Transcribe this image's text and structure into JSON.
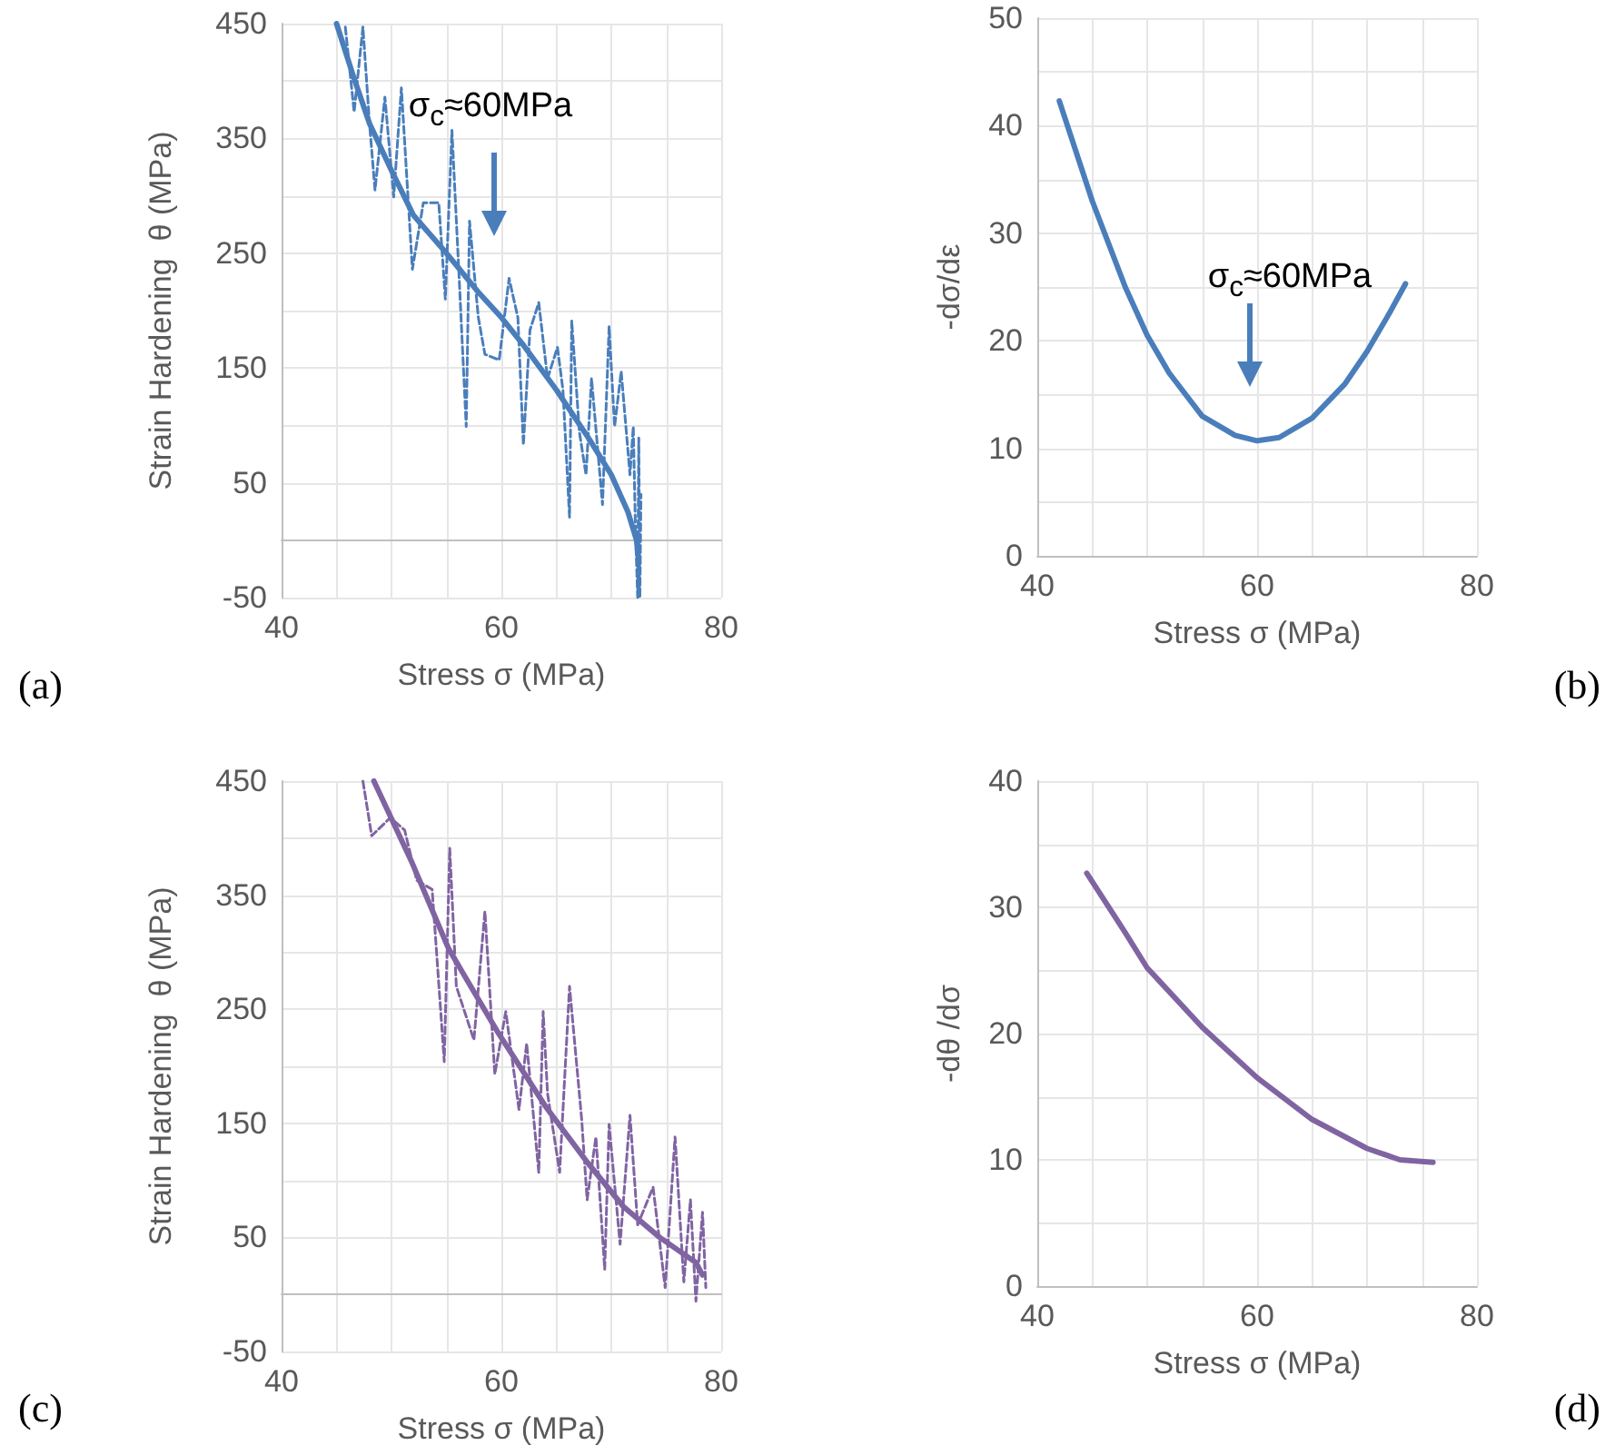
{
  "chart_data": [
    {
      "type": "line",
      "xlabel": "Stress σ (MPa)",
      "ylabel": "Strain Hardening  θ (MPa)",
      "xlim": [
        40,
        80
      ],
      "xticks": [
        40,
        60,
        80
      ],
      "ylim": [
        -50,
        450
      ],
      "yticks": [
        -50,
        50,
        150,
        250,
        350,
        450
      ],
      "grid": true,
      "marker": "none",
      "annotations": [
        "σ$_{c}$≈60MPa",
        "(a)"
      ],
      "series": [
        {
          "color": "#4a7ebb",
          "line_style": "dashed",
          "x": [
            45.8,
            46.6,
            47.4,
            48.0,
            48.5,
            49.4,
            50.2,
            50.9,
            51.9,
            52.9,
            54.3,
            54.9,
            55.5,
            56.2,
            56.8,
            57.1,
            57.9,
            58.5,
            59.8,
            60.7,
            61.5,
            62.0,
            62.6,
            63.4,
            64.2,
            65.1,
            65.6,
            66.2,
            66.4,
            67.1,
            67.7,
            68.2,
            69.2,
            69.8,
            70.3,
            70.9,
            71.7,
            72.0,
            72.2,
            72.4,
            72.5,
            72.6,
            72.7
          ],
          "values": [
            447,
            373,
            447,
            363,
            305,
            386,
            299,
            394,
            236,
            294,
            294,
            210,
            357,
            220,
            99,
            278,
            194,
            162,
            157,
            228,
            194,
            83,
            183,
            207,
            141,
            168,
            131,
            20,
            191,
            94,
            57,
            141,
            31,
            186,
            99,
            147,
            57,
            99,
            9,
            -50,
            89,
            -50,
            40
          ]
        },
        {
          "color": "#4a7ebb",
          "line_style": "solid",
          "x": [
            45,
            46.5,
            48,
            50,
            52,
            55,
            58,
            60,
            62,
            65,
            68,
            70,
            71.5,
            72.3,
            72.5
          ],
          "values": [
            450,
            405,
            363,
            322,
            283,
            250,
            215,
            194,
            170,
            131,
            88,
            57,
            25,
            0,
            -20
          ]
        }
      ]
    },
    {
      "type": "line",
      "xlabel": "Stress σ (MPa)",
      "ylabel": "-dσ/dε",
      "xlim": [
        40,
        80
      ],
      "xticks": [
        40,
        60,
        80
      ],
      "ylim": [
        0,
        50
      ],
      "yticks": [
        0,
        10,
        20,
        30,
        40,
        50
      ],
      "grid": true,
      "marker": "none",
      "annotations": [
        "σ$_{c}$≈60MPa",
        "(b)"
      ],
      "series": [
        {
          "color": "#4a7ebb",
          "line_style": "solid",
          "x": [
            42,
            45,
            48,
            50,
            52,
            55,
            58,
            60,
            62,
            65,
            68,
            70,
            72,
            73.5
          ],
          "values": [
            42.3,
            33,
            25,
            20.5,
            17,
            13,
            11.2,
            10.7,
            11,
            12.8,
            16,
            19,
            22.5,
            25.3
          ]
        }
      ]
    },
    {
      "type": "line",
      "xlabel": "Stress σ (MPa)",
      "ylabel": "Strain Hardening  θ (MPa)",
      "xlim": [
        40,
        80
      ],
      "xticks": [
        40,
        60,
        80
      ],
      "ylim": [
        -50,
        450
      ],
      "yticks": [
        -50,
        50,
        150,
        250,
        350,
        450
      ],
      "grid": true,
      "marker": "none",
      "annotations": [
        "(c)"
      ],
      "series": [
        {
          "color": "#8064a2",
          "line_style": "dashed",
          "x": [
            47.4,
            48.2,
            49.9,
            51.2,
            52.3,
            53.7,
            54.8,
            55.3,
            55.9,
            57.5,
            58.5,
            59.4,
            60.4,
            61.6,
            62.3,
            63.4,
            63.8,
            64.2,
            65.3,
            66.2,
            67.3,
            67.8,
            68.6,
            69.4,
            69.8,
            70.8,
            71.7,
            72.4,
            73.8,
            74.9,
            75.8,
            76.6,
            77.2,
            77.7,
            78.3,
            78.6
          ],
          "values": [
            450,
            402,
            418,
            407,
            363,
            355,
            204,
            391,
            270,
            223,
            336,
            193,
            248,
            162,
            220,
            107,
            248,
            176,
            107,
            270,
            154,
            83,
            138,
            22,
            149,
            44,
            157,
            61,
            94,
            6,
            138,
            11,
            83,
            -6,
            72,
            6
          ]
        },
        {
          "color": "#8064a2",
          "line_style": "solid",
          "x": [
            48.4,
            51.8,
            55.2,
            59.6,
            64.0,
            67.8,
            71.1,
            74.4,
            77.7,
            78.3
          ],
          "values": [
            450,
            380,
            303,
            231,
            165,
            116,
            77,
            50,
            28,
            17
          ]
        }
      ]
    },
    {
      "type": "line",
      "xlabel": "Stress σ (MPa)",
      "ylabel": "-dθ /dσ",
      "xlim": [
        40,
        80
      ],
      "xticks": [
        40,
        60,
        80
      ],
      "ylim": [
        0,
        40
      ],
      "yticks": [
        0,
        10,
        20,
        30,
        40
      ],
      "grid": true,
      "marker": "none",
      "annotations": [
        "(d)"
      ],
      "series": [
        {
          "color": "#8064a2",
          "line_style": "solid",
          "x": [
            44.5,
            48,
            50,
            55,
            60,
            65,
            70,
            73,
            76
          ],
          "values": [
            32.7,
            28,
            25.2,
            20.5,
            16.5,
            13.2,
            10.9,
            10,
            9.8
          ]
        }
      ]
    }
  ]
}
